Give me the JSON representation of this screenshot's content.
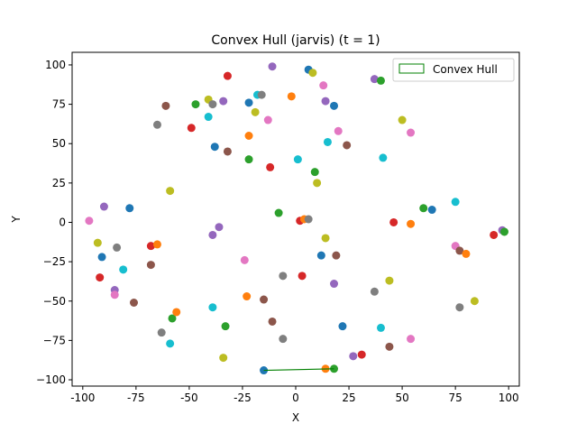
{
  "chart_data": {
    "type": "scatter",
    "title": "Convex Hull (jarvis) (t = 1)",
    "xlabel": "X",
    "ylabel": "Y",
    "xlim": [
      -105,
      105
    ],
    "ylim": [
      -104,
      108
    ],
    "xticks": [
      -100,
      -75,
      -50,
      -25,
      0,
      25,
      50,
      75,
      100
    ],
    "yticks": [
      -100,
      -75,
      -50,
      -25,
      0,
      25,
      50,
      75,
      100
    ],
    "legend": {
      "position": "top-right",
      "entries": [
        "Convex Hull"
      ],
      "color": "#008000"
    },
    "hull_segment": {
      "x": [
        -15,
        18
      ],
      "y": [
        -94,
        -93
      ],
      "color": "#008000"
    },
    "palette": [
      "#1f77b4",
      "#ff7f0e",
      "#2ca02c",
      "#d62728",
      "#9467bd",
      "#8c564b",
      "#e377c2",
      "#7f7f7f",
      "#bcbd22",
      "#17becf"
    ],
    "points": [
      {
        "x": -15,
        "y": -94,
        "c": 0
      },
      {
        "x": 14,
        "y": -93,
        "c": 1
      },
      {
        "x": 18,
        "y": -93,
        "c": 2
      },
      {
        "x": 31,
        "y": -84,
        "c": 3
      },
      {
        "x": 27,
        "y": -85,
        "c": 4
      },
      {
        "x": 44,
        "y": -79,
        "c": 5
      },
      {
        "x": 54,
        "y": -74,
        "c": 6
      },
      {
        "x": -6,
        "y": -74,
        "c": 7
      },
      {
        "x": -34,
        "y": -86,
        "c": 8
      },
      {
        "x": -59,
        "y": -77,
        "c": 9
      },
      {
        "x": -63,
        "y": -70,
        "c": 7
      },
      {
        "x": -58,
        "y": -61,
        "c": 2
      },
      {
        "x": -56,
        "y": -57,
        "c": 1
      },
      {
        "x": -33,
        "y": -66,
        "c": 2
      },
      {
        "x": -39,
        "y": -54,
        "c": 9
      },
      {
        "x": -11,
        "y": -63,
        "c": 5
      },
      {
        "x": 22,
        "y": -66,
        "c": 0
      },
      {
        "x": 40,
        "y": -67,
        "c": 9
      },
      {
        "x": -15,
        "y": -49,
        "c": 5
      },
      {
        "x": -23,
        "y": -47,
        "c": 1
      },
      {
        "x": -6,
        "y": -34,
        "c": 7
      },
      {
        "x": 3,
        "y": -34,
        "c": 3
      },
      {
        "x": 18,
        "y": -39,
        "c": 4
      },
      {
        "x": 37,
        "y": -44,
        "c": 7
      },
      {
        "x": 44,
        "y": -37,
        "c": 8
      },
      {
        "x": 77,
        "y": -54,
        "c": 7
      },
      {
        "x": 84,
        "y": -50,
        "c": 8
      },
      {
        "x": -76,
        "y": -51,
        "c": 5
      },
      {
        "x": -85,
        "y": -43,
        "c": 4
      },
      {
        "x": -85,
        "y": -46,
        "c": 6
      },
      {
        "x": -92,
        "y": -35,
        "c": 3
      },
      {
        "x": -68,
        "y": -27,
        "c": 5
      },
      {
        "x": -81,
        "y": -30,
        "c": 9
      },
      {
        "x": -24,
        "y": -24,
        "c": 6
      },
      {
        "x": 12,
        "y": -21,
        "c": 0
      },
      {
        "x": 19,
        "y": -21,
        "c": 5
      },
      {
        "x": -91,
        "y": -22,
        "c": 0
      },
      {
        "x": -84,
        "y": -16,
        "c": 7
      },
      {
        "x": -93,
        "y": -13,
        "c": 8
      },
      {
        "x": -68,
        "y": -15,
        "c": 3
      },
      {
        "x": -65,
        "y": -14,
        "c": 1
      },
      {
        "x": -39,
        "y": -8,
        "c": 4
      },
      {
        "x": 14,
        "y": -10,
        "c": 8
      },
      {
        "x": 75,
        "y": -15,
        "c": 6
      },
      {
        "x": 77,
        "y": -18,
        "c": 5
      },
      {
        "x": 80,
        "y": -20,
        "c": 1
      },
      {
        "x": 93,
        "y": -8,
        "c": 3
      },
      {
        "x": 97,
        "y": -5,
        "c": 4
      },
      {
        "x": 98,
        "y": -6,
        "c": 2
      },
      {
        "x": -97,
        "y": 1,
        "c": 6
      },
      {
        "x": -90,
        "y": 10,
        "c": 4
      },
      {
        "x": -78,
        "y": 9,
        "c": 0
      },
      {
        "x": -36,
        "y": -3,
        "c": 4
      },
      {
        "x": 2,
        "y": 1,
        "c": 3
      },
      {
        "x": 4,
        "y": 2,
        "c": 1
      },
      {
        "x": 6,
        "y": 2,
        "c": 7
      },
      {
        "x": -8,
        "y": 6,
        "c": 2
      },
      {
        "x": 46,
        "y": 0,
        "c": 3
      },
      {
        "x": 54,
        "y": -1,
        "c": 1
      },
      {
        "x": 60,
        "y": 9,
        "c": 2
      },
      {
        "x": 64,
        "y": 8,
        "c": 0
      },
      {
        "x": 75,
        "y": 13,
        "c": 9
      },
      {
        "x": -59,
        "y": 20,
        "c": 8
      },
      {
        "x": -22,
        "y": 40,
        "c": 2
      },
      {
        "x": -12,
        "y": 35,
        "c": 3
      },
      {
        "x": 1,
        "y": 40,
        "c": 9
      },
      {
        "x": 9,
        "y": 32,
        "c": 2
      },
      {
        "x": 10,
        "y": 25,
        "c": 8
      },
      {
        "x": 41,
        "y": 41,
        "c": 9
      },
      {
        "x": -38,
        "y": 48,
        "c": 0
      },
      {
        "x": -32,
        "y": 45,
        "c": 5
      },
      {
        "x": -22,
        "y": 55,
        "c": 1
      },
      {
        "x": 15,
        "y": 51,
        "c": 9
      },
      {
        "x": 20,
        "y": 58,
        "c": 6
      },
      {
        "x": 24,
        "y": 49,
        "c": 5
      },
      {
        "x": 50,
        "y": 65,
        "c": 8
      },
      {
        "x": 54,
        "y": 57,
        "c": 6
      },
      {
        "x": -65,
        "y": 62,
        "c": 7
      },
      {
        "x": -49,
        "y": 60,
        "c": 3
      },
      {
        "x": -41,
        "y": 67,
        "c": 9
      },
      {
        "x": -13,
        "y": 65,
        "c": 6
      },
      {
        "x": -19,
        "y": 70,
        "c": 8
      },
      {
        "x": -61,
        "y": 74,
        "c": 5
      },
      {
        "x": -47,
        "y": 75,
        "c": 2
      },
      {
        "x": -41,
        "y": 78,
        "c": 8
      },
      {
        "x": -39,
        "y": 75,
        "c": 7
      },
      {
        "x": -34,
        "y": 77,
        "c": 4
      },
      {
        "x": -22,
        "y": 76,
        "c": 0
      },
      {
        "x": -18,
        "y": 81,
        "c": 9
      },
      {
        "x": -16,
        "y": 81,
        "c": 7
      },
      {
        "x": -2,
        "y": 80,
        "c": 1
      },
      {
        "x": 14,
        "y": 77,
        "c": 4
      },
      {
        "x": 18,
        "y": 74,
        "c": 0
      },
      {
        "x": 13,
        "y": 87,
        "c": 6
      },
      {
        "x": 37,
        "y": 91,
        "c": 4
      },
      {
        "x": 40,
        "y": 90,
        "c": 2
      },
      {
        "x": -32,
        "y": 93,
        "c": 3
      },
      {
        "x": -11,
        "y": 99,
        "c": 4
      },
      {
        "x": 6,
        "y": 97,
        "c": 0
      },
      {
        "x": 8,
        "y": 95,
        "c": 8
      }
    ]
  }
}
